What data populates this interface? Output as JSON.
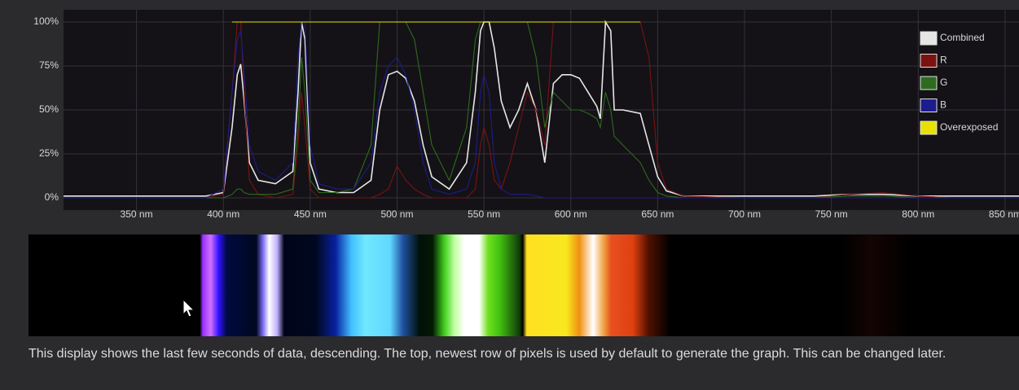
{
  "chart_data": {
    "type": "line",
    "x": [
      308,
      390,
      400,
      405,
      408,
      410,
      412,
      415,
      420,
      430,
      440,
      443,
      445,
      447,
      450,
      455,
      465,
      475,
      485,
      490,
      495,
      500,
      505,
      510,
      515,
      520,
      530,
      540,
      545,
      548,
      550,
      553,
      556,
      560,
      565,
      570,
      575,
      580,
      585,
      590,
      595,
      600,
      605,
      610,
      615,
      617,
      620,
      623,
      625,
      630,
      640,
      645,
      650,
      655,
      665,
      700,
      740,
      760,
      780,
      800,
      820,
      858
    ],
    "series": [
      {
        "name": "Combined",
        "color": "#e6e6e6",
        "values": [
          1,
          1,
          3,
          40,
          70,
          76,
          55,
          20,
          10,
          8,
          15,
          60,
          100,
          90,
          20,
          5,
          3,
          3,
          10,
          50,
          70,
          72,
          68,
          55,
          30,
          12,
          5,
          20,
          60,
          95,
          100,
          100,
          85,
          55,
          40,
          50,
          65,
          50,
          20,
          65,
          70,
          70,
          68,
          60,
          52,
          45,
          100,
          95,
          50,
          50,
          48,
          30,
          12,
          4,
          1,
          1,
          1,
          2,
          2,
          1,
          1,
          1
        ]
      },
      {
        "name": "R",
        "color": "#7a1212",
        "values": [
          0,
          0,
          2,
          60,
          100,
          100,
          60,
          10,
          2,
          0,
          2,
          30,
          60,
          40,
          5,
          0,
          0,
          0,
          0,
          2,
          5,
          18,
          10,
          5,
          2,
          0,
          0,
          0,
          5,
          30,
          40,
          30,
          10,
          5,
          20,
          40,
          60,
          50,
          30,
          100,
          100,
          100,
          100,
          100,
          100,
          100,
          100,
          100,
          100,
          100,
          100,
          80,
          20,
          5,
          1,
          0,
          0,
          2,
          3,
          1,
          0,
          0
        ]
      },
      {
        "name": "G",
        "color": "#2e6b1e",
        "values": [
          0,
          0,
          0,
          2,
          5,
          5,
          3,
          2,
          2,
          2,
          5,
          40,
          80,
          60,
          10,
          3,
          3,
          5,
          30,
          100,
          100,
          100,
          100,
          90,
          60,
          30,
          10,
          40,
          90,
          100,
          100,
          100,
          100,
          100,
          100,
          100,
          100,
          80,
          40,
          60,
          55,
          50,
          50,
          48,
          45,
          40,
          60,
          50,
          35,
          30,
          20,
          10,
          3,
          1,
          0,
          0,
          0,
          1,
          1,
          0,
          0,
          0
        ]
      },
      {
        "name": "B",
        "color": "#1c1c8e",
        "values": [
          0,
          0,
          5,
          60,
          90,
          95,
          70,
          30,
          15,
          10,
          20,
          80,
          100,
          100,
          30,
          8,
          5,
          5,
          20,
          60,
          75,
          80,
          70,
          50,
          20,
          5,
          2,
          5,
          20,
          60,
          70,
          60,
          20,
          5,
          2,
          2,
          2,
          1,
          0,
          0,
          0,
          0,
          0,
          0,
          0,
          0,
          0,
          0,
          0,
          0,
          0,
          0,
          0,
          0,
          0,
          0,
          0,
          0,
          0,
          0,
          0,
          0
        ]
      },
      {
        "name": "Overexposed",
        "color": "#e8e000",
        "values": [
          null,
          null,
          null,
          100,
          100,
          100,
          100,
          100,
          100,
          100,
          100,
          100,
          100,
          100,
          100,
          100,
          100,
          100,
          100,
          100,
          100,
          100,
          100,
          100,
          100,
          100,
          100,
          100,
          100,
          100,
          100,
          100,
          100,
          100,
          100,
          100,
          100,
          100,
          100,
          100,
          100,
          100,
          100,
          100,
          100,
          100,
          100,
          100,
          100,
          100,
          100,
          null,
          null,
          null,
          null,
          null,
          null,
          null,
          null,
          null,
          null,
          null
        ]
      }
    ],
    "xlim": [
      308,
      858
    ],
    "ylim": [
      0,
      100
    ],
    "xticks": [
      {
        "value": 350,
        "label": "350 nm"
      },
      {
        "value": 400,
        "label": "400 nm"
      },
      {
        "value": 450,
        "label": "450 nm"
      },
      {
        "value": 500,
        "label": "500 nm"
      },
      {
        "value": 550,
        "label": "550 nm"
      },
      {
        "value": 600,
        "label": "600 nm"
      },
      {
        "value": 650,
        "label": "650 nm"
      },
      {
        "value": 700,
        "label": "700 nm"
      },
      {
        "value": 750,
        "label": "750 nm"
      },
      {
        "value": 800,
        "label": "800 nm"
      },
      {
        "value": 850,
        "label": "850 nm"
      }
    ],
    "yticks": [
      {
        "value": 0,
        "label": "0%"
      },
      {
        "value": 25,
        "label": "25%"
      },
      {
        "value": 50,
        "label": "50%"
      },
      {
        "value": 75,
        "label": "75%"
      },
      {
        "value": 100,
        "label": "100%"
      }
    ],
    "grid": true,
    "legend": "top-right"
  },
  "caption": "This display shows the last few seconds of data, descending. The top, newest row of pixels is used by default to generate the graph. This can be changed later."
}
